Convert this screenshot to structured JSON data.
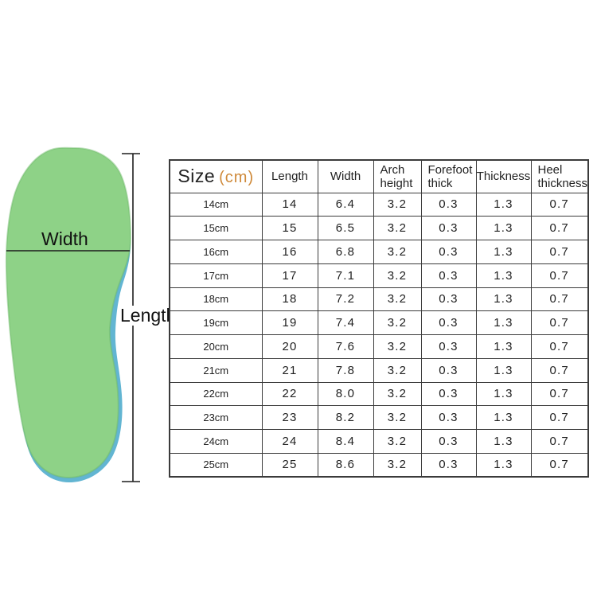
{
  "colors": {
    "bg": "#ffffff",
    "ink": "#222222",
    "border": "#3b3b3b",
    "accent_orange": "#cf8a3a",
    "insole_green": "#8ed287",
    "insole_green_edge": "#6db968",
    "insole_edge_blue": "#62b5d2",
    "line": "#1d1d1d"
  },
  "diagram": {
    "width_label": "Width",
    "length_label": "Length"
  },
  "chart_data": {
    "type": "table",
    "title": "Size (cm)",
    "columns": [
      "Size (cm)",
      "Length",
      "Width",
      "Arch height",
      "Forefoot thick",
      "Thickness",
      "Heel thickness"
    ],
    "rows": [
      [
        "14cm",
        14,
        6.4,
        3.2,
        0.3,
        1.3,
        0.7
      ],
      [
        "15cm",
        15,
        6.5,
        3.2,
        0.3,
        1.3,
        0.7
      ],
      [
        "16cm",
        16,
        6.8,
        3.2,
        0.3,
        1.3,
        0.7
      ],
      [
        "17cm",
        17,
        7.1,
        3.2,
        0.3,
        1.3,
        0.7
      ],
      [
        "18cm",
        18,
        7.2,
        3.2,
        0.3,
        1.3,
        0.7
      ],
      [
        "19cm",
        19,
        7.4,
        3.2,
        0.3,
        1.3,
        0.7
      ],
      [
        "20cm",
        20,
        7.6,
        3.2,
        0.3,
        1.3,
        0.7
      ],
      [
        "21cm",
        21,
        7.8,
        3.2,
        0.3,
        1.3,
        0.7
      ],
      [
        "22cm",
        22,
        8.0,
        3.2,
        0.3,
        1.3,
        0.7
      ],
      [
        "23cm",
        23,
        8.2,
        3.2,
        0.3,
        1.3,
        0.7
      ],
      [
        "24cm",
        24,
        8.4,
        3.2,
        0.3,
        1.3,
        0.7
      ],
      [
        "25cm",
        25,
        8.6,
        3.2,
        0.3,
        1.3,
        0.7
      ]
    ]
  },
  "table": {
    "size_header": {
      "text": "Size",
      "unit": "(cm)"
    },
    "columns": [
      {
        "key": "length",
        "label": "Length"
      },
      {
        "key": "width",
        "label": "Width"
      },
      {
        "key": "arch_height",
        "label": "Arch height"
      },
      {
        "key": "forefoot_thick",
        "label": "Forefoot thick"
      },
      {
        "key": "thickness",
        "label": "Thickness"
      },
      {
        "key": "heel_thickness",
        "label": "Heel thickness"
      }
    ],
    "rows": [
      {
        "size": "14cm",
        "length": "14",
        "width": "6.4",
        "arch_height": "3.2",
        "forefoot_thick": "0.3",
        "thickness": "1.3",
        "heel_thickness": "0.7"
      },
      {
        "size": "15cm",
        "length": "15",
        "width": "6.5",
        "arch_height": "3.2",
        "forefoot_thick": "0.3",
        "thickness": "1.3",
        "heel_thickness": "0.7"
      },
      {
        "size": "16cm",
        "length": "16",
        "width": "6.8",
        "arch_height": "3.2",
        "forefoot_thick": "0.3",
        "thickness": "1.3",
        "heel_thickness": "0.7"
      },
      {
        "size": "17cm",
        "length": "17",
        "width": "7.1",
        "arch_height": "3.2",
        "forefoot_thick": "0.3",
        "thickness": "1.3",
        "heel_thickness": "0.7"
      },
      {
        "size": "18cm",
        "length": "18",
        "width": "7.2",
        "arch_height": "3.2",
        "forefoot_thick": "0.3",
        "thickness": "1.3",
        "heel_thickness": "0.7"
      },
      {
        "size": "19cm",
        "length": "19",
        "width": "7.4",
        "arch_height": "3.2",
        "forefoot_thick": "0.3",
        "thickness": "1.3",
        "heel_thickness": "0.7"
      },
      {
        "size": "20cm",
        "length": "20",
        "width": "7.6",
        "arch_height": "3.2",
        "forefoot_thick": "0.3",
        "thickness": "1.3",
        "heel_thickness": "0.7"
      },
      {
        "size": "21cm",
        "length": "21",
        "width": "7.8",
        "arch_height": "3.2",
        "forefoot_thick": "0.3",
        "thickness": "1.3",
        "heel_thickness": "0.7"
      },
      {
        "size": "22cm",
        "length": "22",
        "width": "8.0",
        "arch_height": "3.2",
        "forefoot_thick": "0.3",
        "thickness": "1.3",
        "heel_thickness": "0.7"
      },
      {
        "size": "23cm",
        "length": "23",
        "width": "8.2",
        "arch_height": "3.2",
        "forefoot_thick": "0.3",
        "thickness": "1.3",
        "heel_thickness": "0.7"
      },
      {
        "size": "24cm",
        "length": "24",
        "width": "8.4",
        "arch_height": "3.2",
        "forefoot_thick": "0.3",
        "thickness": "1.3",
        "heel_thickness": "0.7"
      },
      {
        "size": "25cm",
        "length": "25",
        "width": "8.6",
        "arch_height": "3.2",
        "forefoot_thick": "0.3",
        "thickness": "1.3",
        "heel_thickness": "0.7"
      }
    ]
  }
}
